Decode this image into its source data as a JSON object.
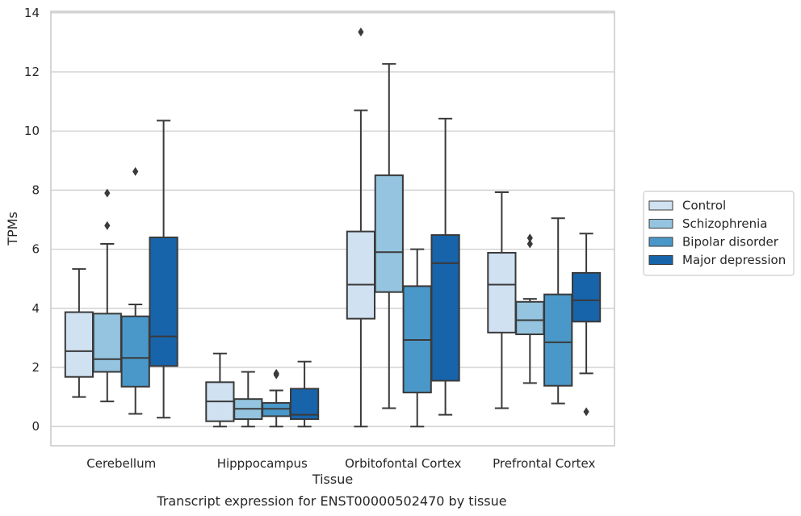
{
  "chart_data": {
    "type": "box",
    "title": "",
    "caption": "Transcript expression for ENST00000502470 by tissue",
    "xlabel": "Tissue",
    "ylabel": "TPMs",
    "ylim": [
      -0.65,
      14.05
    ],
    "yticks": [
      0,
      2,
      4,
      6,
      8,
      10,
      12,
      14
    ],
    "grid": "horizontal",
    "legend_position": "right",
    "categories": [
      "Cerebellum",
      "Hipppocampus",
      "Orbitofontal Cortex",
      "Prefrontal Cortex"
    ],
    "series": [
      {
        "name": "Control",
        "color": "#d0e1f2",
        "boxes": [
          {
            "whislo": 1.0,
            "q1": 1.68,
            "med": 2.55,
            "q3": 3.87,
            "whishi": 5.33,
            "fliers": []
          },
          {
            "whislo": 0.0,
            "q1": 0.18,
            "med": 0.85,
            "q3": 1.5,
            "whishi": 2.47,
            "fliers": []
          },
          {
            "whislo": 0.0,
            "q1": 3.65,
            "med": 4.8,
            "q3": 6.6,
            "whishi": 10.7,
            "fliers": [
              13.35
            ]
          },
          {
            "whislo": 0.62,
            "q1": 3.18,
            "med": 4.8,
            "q3": 5.88,
            "whishi": 7.93,
            "fliers": []
          }
        ]
      },
      {
        "name": "Schizophrenia",
        "color": "#94c4df",
        "boxes": [
          {
            "whislo": 0.85,
            "q1": 1.85,
            "med": 2.28,
            "q3": 3.82,
            "whishi": 6.18,
            "fliers": [
              6.8,
              7.9
            ]
          },
          {
            "whislo": 0.0,
            "q1": 0.25,
            "med": 0.6,
            "q3": 0.93,
            "whishi": 1.85,
            "fliers": []
          },
          {
            "whislo": 0.62,
            "q1": 4.55,
            "med": 5.9,
            "q3": 8.5,
            "whishi": 12.27,
            "fliers": []
          },
          {
            "whislo": 1.47,
            "q1": 3.12,
            "med": 3.6,
            "q3": 4.22,
            "whishi": 4.32,
            "fliers": [
              6.18,
              6.38
            ]
          }
        ]
      },
      {
        "name": "Bipolar disorder",
        "color": "#4a98c9",
        "boxes": [
          {
            "whislo": 0.43,
            "q1": 1.35,
            "med": 2.32,
            "q3": 3.73,
            "whishi": 4.13,
            "fliers": [
              8.63
            ]
          },
          {
            "whislo": 0.0,
            "q1": 0.35,
            "med": 0.6,
            "q3": 0.8,
            "whishi": 1.22,
            "fliers": [
              1.75,
              1.8
            ]
          },
          {
            "whislo": 0.0,
            "q1": 1.15,
            "med": 2.93,
            "q3": 4.75,
            "whishi": 6.0,
            "fliers": []
          },
          {
            "whislo": 0.78,
            "q1": 1.38,
            "med": 2.85,
            "q3": 4.47,
            "whishi": 7.05,
            "fliers": []
          }
        ]
      },
      {
        "name": "Major depression",
        "color": "#1764ab",
        "boxes": [
          {
            "whislo": 0.3,
            "q1": 2.05,
            "med": 3.05,
            "q3": 6.4,
            "whishi": 10.35,
            "fliers": []
          },
          {
            "whislo": 0.0,
            "q1": 0.25,
            "med": 0.4,
            "q3": 1.28,
            "whishi": 2.2,
            "fliers": []
          },
          {
            "whislo": 0.4,
            "q1": 1.55,
            "med": 5.53,
            "q3": 6.48,
            "whishi": 10.42,
            "fliers": []
          },
          {
            "whislo": 1.8,
            "q1": 3.55,
            "med": 4.27,
            "q3": 5.2,
            "whishi": 6.53,
            "fliers": [
              0.5
            ]
          }
        ]
      }
    ]
  }
}
